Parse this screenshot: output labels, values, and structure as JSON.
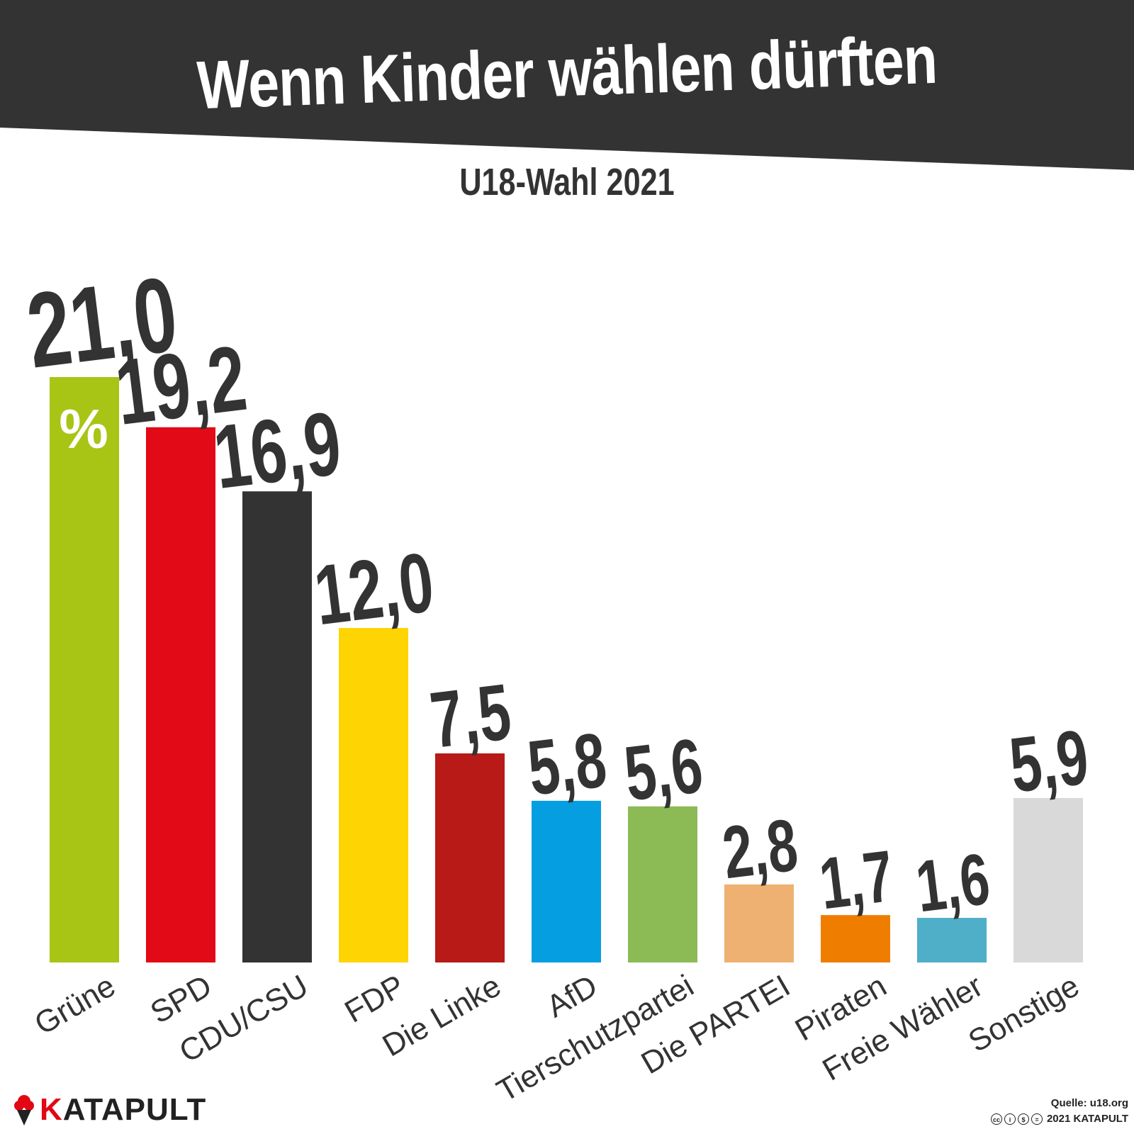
{
  "title": "Wenn Kinder wählen dürften",
  "subtitle": "U18-Wahl 2021",
  "unit": "%",
  "brand": {
    "name_first": "K",
    "name_rest": "ATAPULT"
  },
  "source": "Quelle: u18.org",
  "copyright": "2021 KATAPULT",
  "colors": {
    "header": "#333333",
    "text": "#333333",
    "brand_red": "#e30613"
  },
  "icons": [
    "cc-icon",
    "by-icon",
    "nc-icon",
    "nd-icon",
    "brand-logo-icon"
  ],
  "chart_data": {
    "type": "bar",
    "categories": [
      "Grüne",
      "SPD",
      "CDU/CSU",
      "FDP",
      "Die Linke",
      "AfD",
      "Tierschutzpartei",
      "Die PARTEI",
      "Piraten",
      "Freie Wähler",
      "Sonstige"
    ],
    "values": [
      21.0,
      19.2,
      16.9,
      12.0,
      7.5,
      5.8,
      5.6,
      2.8,
      1.7,
      1.6,
      5.9
    ],
    "value_labels": [
      "21,0",
      "19,2",
      "16,9",
      "12,0",
      "7,5",
      "5,8",
      "5,6",
      "2,8",
      "1,7",
      "1,6",
      "5,9"
    ],
    "colors": [
      "#a8c515",
      "#e20a16",
      "#333333",
      "#fed403",
      "#b81a17",
      "#059ee0",
      "#8cba55",
      "#efb171",
      "#ef7d00",
      "#4faec8",
      "#d9d9d9"
    ],
    "ylim": [
      0,
      21.0
    ],
    "grid": false,
    "legend": "none"
  }
}
